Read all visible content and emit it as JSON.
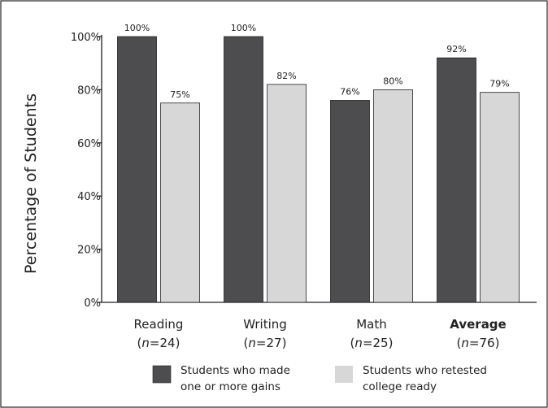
{
  "chart_data": {
    "type": "bar",
    "ylabel": "Percentage of Students",
    "ylim": [
      0,
      100
    ],
    "yticks": [
      {
        "value": 0,
        "label": "0%"
      },
      {
        "value": 20,
        "label": "20%"
      },
      {
        "value": 40,
        "label": "40%"
      },
      {
        "value": 60,
        "label": "60%"
      },
      {
        "value": 80,
        "label": "80%"
      },
      {
        "value": 100,
        "label": "100%"
      }
    ],
    "categories": [
      {
        "name": "Reading",
        "n": "24",
        "bold": false
      },
      {
        "name": "Writing",
        "n": "27",
        "bold": false
      },
      {
        "name": "Math",
        "n": "25",
        "bold": false
      },
      {
        "name": "Average",
        "n": "76",
        "bold": true
      }
    ],
    "series": [
      {
        "name": "Students who made one or more gains",
        "legend_lines": [
          "Students who made",
          "one or more gains"
        ],
        "color": "#4d4d4f",
        "values": [
          100,
          100,
          76,
          92
        ],
        "labels": [
          "100%",
          "100%",
          "76%",
          "92%"
        ]
      },
      {
        "name": "Students who retested college ready",
        "legend_lines": [
          "Students who retested",
          "college ready"
        ],
        "color": "#d7d7d7",
        "values": [
          75,
          82,
          80,
          79
        ],
        "labels": [
          "75%",
          "82%",
          "80%",
          "79%"
        ]
      }
    ],
    "grid": false,
    "legend": "bottom"
  }
}
